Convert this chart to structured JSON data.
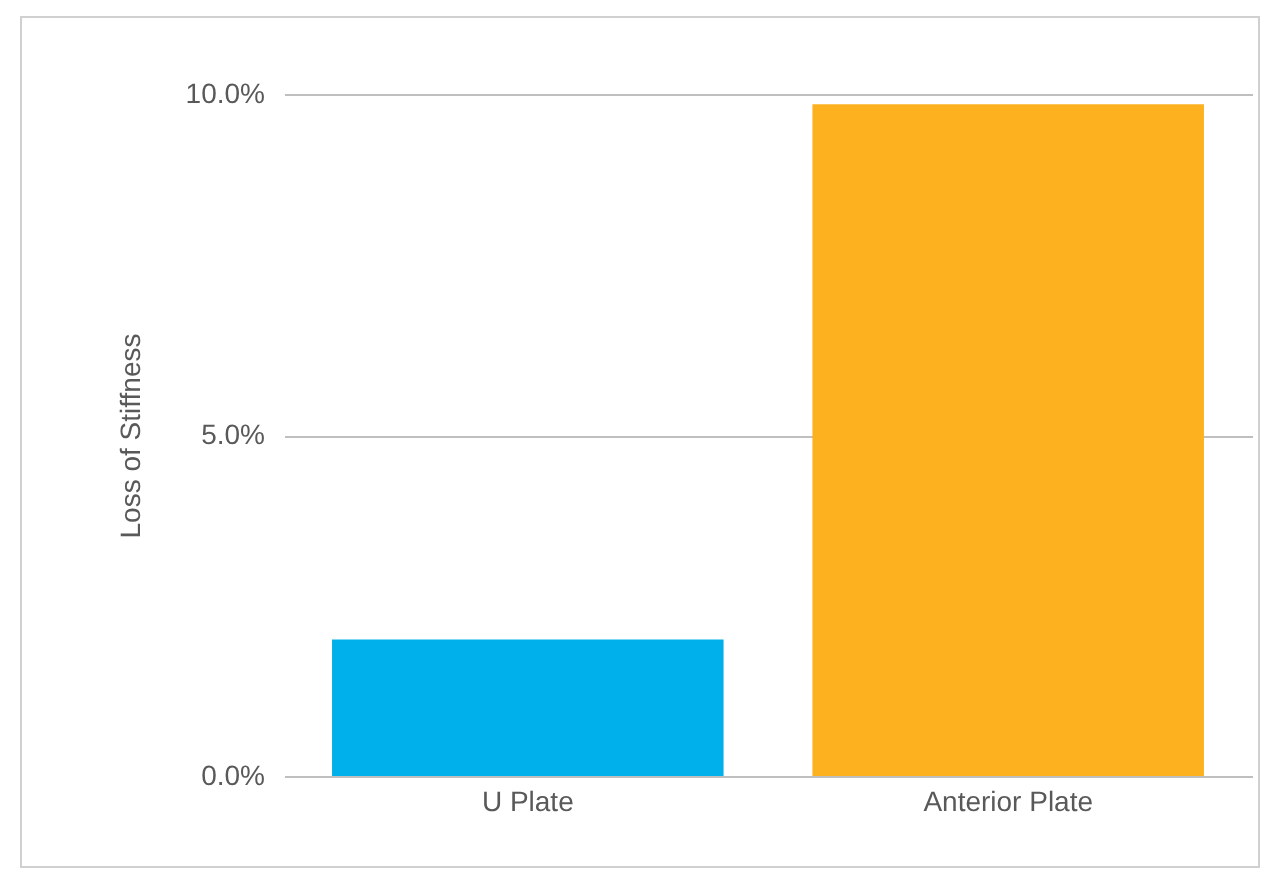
{
  "chart_data": {
    "type": "bar",
    "ylabel": "Loss of Stiffness",
    "categories": [
      "U Plate",
      "Anterior Plate"
    ],
    "values": [
      2.0,
      9.85
    ],
    "colors": [
      "#00b0ea",
      "#fdb11f"
    ],
    "ylim": [
      0,
      10
    ],
    "yticks": [
      {
        "value": 0,
        "label": "0.0%"
      },
      {
        "value": 5,
        "label": "5.0%"
      },
      {
        "value": 10,
        "label": "10.0%"
      }
    ],
    "grid": "y"
  }
}
